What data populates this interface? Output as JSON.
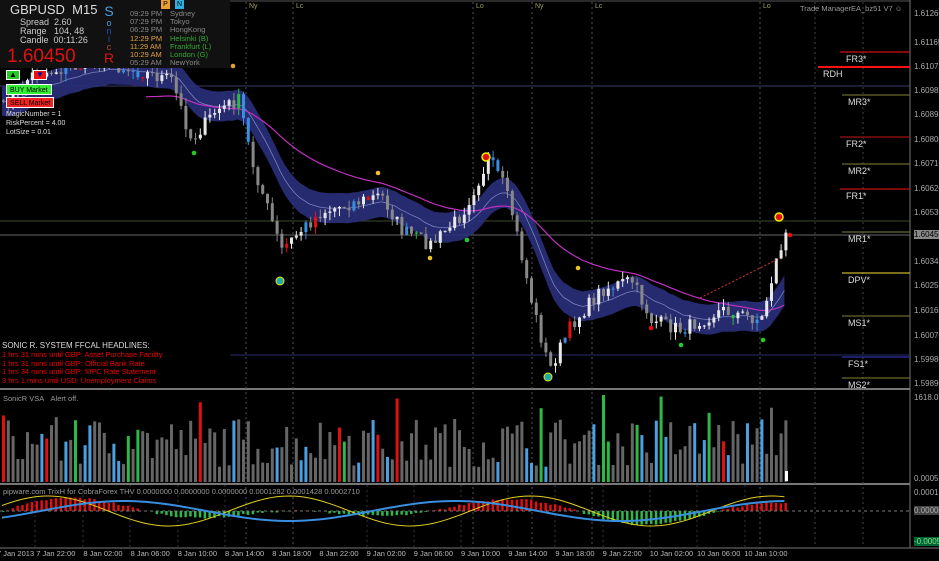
{
  "symbol": "GBPUSD",
  "timeframe": "M15",
  "info": {
    "spread_label": "Spread",
    "spread": "2.60",
    "range_label": "Range",
    "range": "104, 48",
    "candle_label": "Candle",
    "candle": "00:11:26",
    "price": "1.60450",
    "sonic_letters": [
      "S",
      "o",
      "n",
      "i",
      "c",
      "R"
    ]
  },
  "sessions": [
    {
      "time": "09:29 PM",
      "city": "Sydney",
      "color": "#888"
    },
    {
      "time": "07:29 PM",
      "city": "Tokyo",
      "color": "#888"
    },
    {
      "time": "06:29 PM",
      "city": "HongKong",
      "color": "#888"
    },
    {
      "time": "12:29 PM",
      "city": "Helsinki  (B)",
      "color": "#3a3"
    },
    {
      "time": "11:29 AM",
      "city": "Frankfurt  (L)",
      "color": "#3a3"
    },
    {
      "time": "10:29 AM",
      "city": "London  (G)",
      "color": "#3a3"
    },
    {
      "time": "05:29 AM",
      "city": "NewYork",
      "color": "#888"
    }
  ],
  "time_colors": [
    "#888",
    "#888",
    "#888",
    "#e0a040",
    "#e0a040",
    "#e0a040",
    "#888"
  ],
  "badges": [
    "P",
    "N"
  ],
  "trade_panel": {
    "buy_market": "BUY Market",
    "sell_market": "SELL Market",
    "magic_number": "MagicNumber = 1",
    "risk_percent": "RiskPercent = 4.00",
    "lot_size": "LotSize = 0.01"
  },
  "ea_label": "Trade ManagerEA_bz51 V7",
  "session_markers": [
    {
      "label": "Ny"
    },
    {
      "label": "Lc"
    },
    {
      "label": "Lo"
    },
    {
      "label": "Ny"
    },
    {
      "label": "Lc"
    },
    {
      "label": "Lo"
    }
  ],
  "pivots": [
    {
      "label": "FR3*",
      "color": "#d01010"
    },
    {
      "label": "RDH",
      "color": "#ff1010"
    },
    {
      "label": "MR3*",
      "color": "#6a6a2a"
    },
    {
      "label": "FR2*",
      "color": "#a01010"
    },
    {
      "label": "MR2*",
      "color": "#6a6a2a"
    },
    {
      "label": "FR1*",
      "color": "#c01010"
    },
    {
      "label": "MR1*",
      "color": "#6a6a2a"
    },
    {
      "label": "DPV*",
      "color": "#c8b030"
    },
    {
      "label": "MS1*",
      "color": "#6a6a2a"
    },
    {
      "label": "FS1*",
      "color": "#3030a0"
    },
    {
      "label": "MS2*",
      "color": "#6a6a2a"
    }
  ],
  "headlines": {
    "title": "SONIC R. SYSTEM  FFCAL HEADLINES:",
    "items": [
      "1 hrs 31 mins until GBP: Asset Purchase Facility",
      "1 hrs 31 mins until GBP: Official Bank Rate",
      "1 hrs 34 mins until GBP: MPC Rate Statement",
      "3 hrs 1 mins until USD: Unemployment Claims"
    ]
  },
  "price_axis": [
    "1.61260",
    "1.61165",
    "1.61075",
    "1.60985",
    "1.60895",
    "1.60800",
    "1.60710",
    "1.60620",
    "1.60530",
    "1.60450",
    "1.60345",
    "1.60253",
    "1.60160",
    "1.60070",
    "1.59980",
    "1.59890"
  ],
  "vsa": {
    "title": "SonicR VSA",
    "alert": "Alert off.",
    "axis_max": "1618.05",
    "axis_min": "0.0005"
  },
  "trix": {
    "title": "pipware.com TrixH for CobraForex THV 0.0000000 0.0000000 0.0000000 0.0001282 0.0001428 0.0002710",
    "axis": [
      "0.00015",
      "0.00000",
      "-0.00058"
    ]
  },
  "time_axis": [
    "7 Jan 2013",
    "7 Jan 22:00",
    "8 Jan 02:00",
    "8 Jan 06:00",
    "8 Jan 10:00",
    "8 Jan 14:00",
    "8 Jan 18:00",
    "8 Jan 22:00",
    "9 Jan 02:00",
    "9 Jan 06:00",
    "9 Jan 10:00",
    "9 Jan 14:00",
    "9 Jan 18:00",
    "9 Jan 22:00",
    "10 Jan 02:00",
    "10 Jan 06:00",
    "10 Jan 10:00"
  ],
  "colors": {
    "band": "#2a2f7a",
    "ma": "#c030c0",
    "up": "#e8e8e8",
    "down": "#888",
    "bear": "#3a8ee0",
    "bull": "#2db84a",
    "climax": "#e01010"
  }
}
